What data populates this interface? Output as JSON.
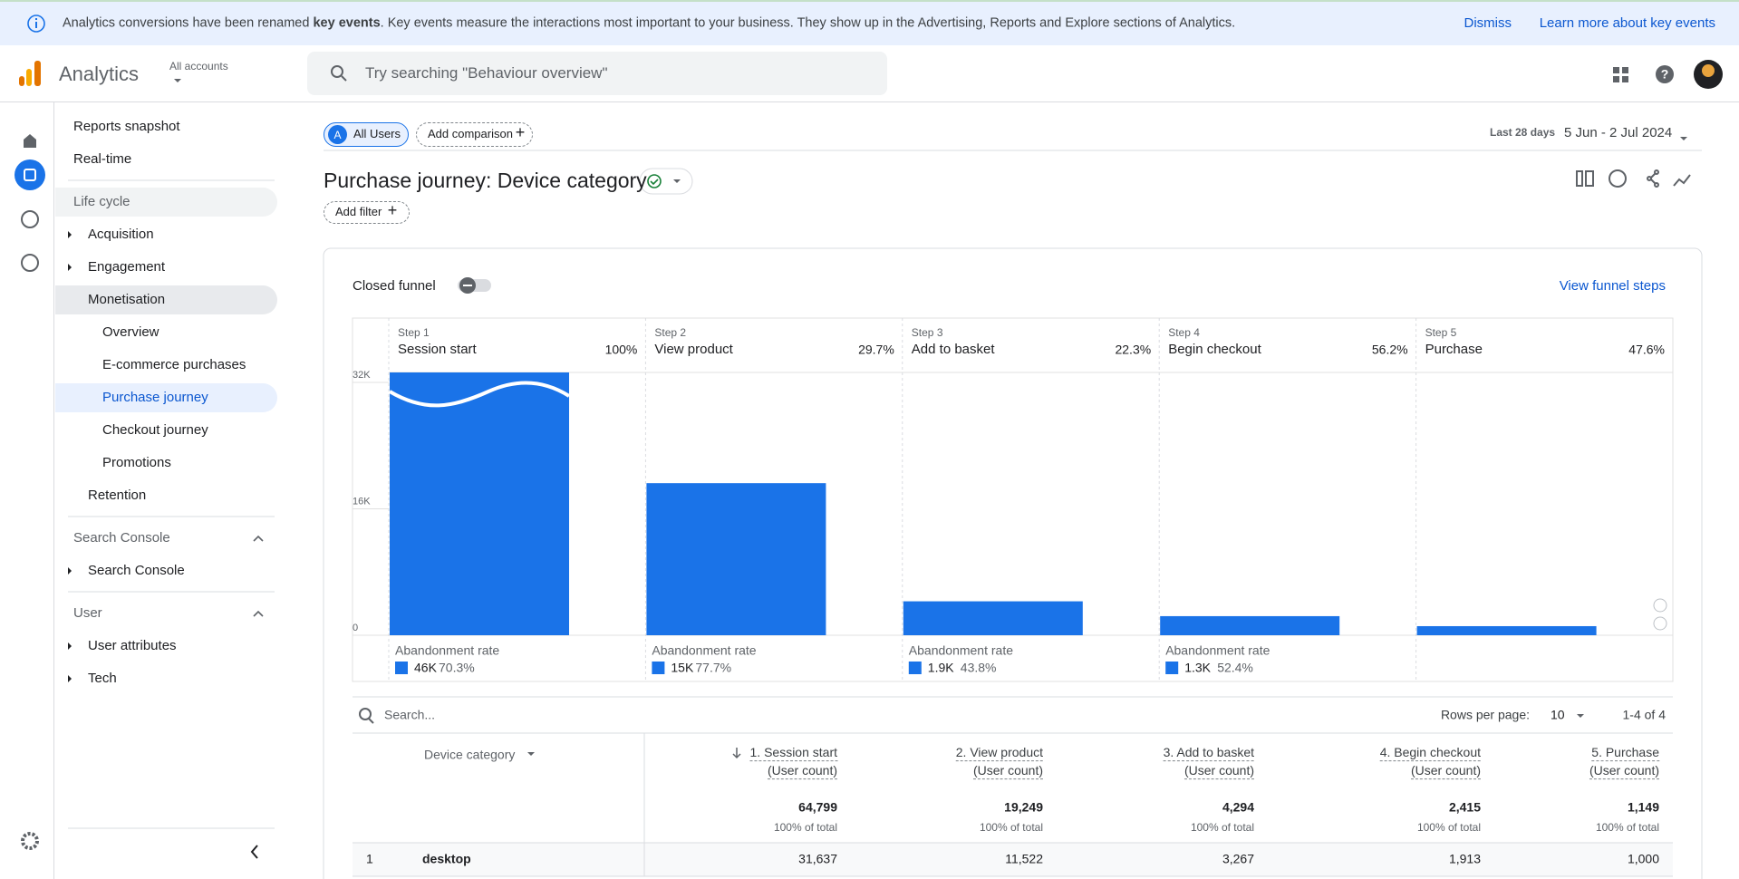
{
  "banner": {
    "message_prefix": "Analytics conversions have been renamed ",
    "message_bold": "key events",
    "message_suffix": ". Key events measure the interactions most important to your business. They show up in the Advertising, Reports and Explore sections of Analytics.",
    "dismiss": "Dismiss",
    "learn_more": "Learn more about key events"
  },
  "header": {
    "product": "Analytics",
    "account_label": "All accounts",
    "search_placeholder": "Try searching \"Behaviour overview\""
  },
  "nav": {
    "top": [
      "Reports snapshot",
      "Real-time"
    ],
    "sections": [
      {
        "title": "Life cycle",
        "items": [
          {
            "label": "Acquisition"
          },
          {
            "label": "Engagement"
          },
          {
            "label": "Monetisation",
            "children": [
              "Overview",
              "E-commerce purchases",
              "Purchase journey",
              "Checkout journey",
              "Promotions"
            ]
          },
          {
            "label": "Retention"
          }
        ]
      },
      {
        "title": "Search Console",
        "items": [
          {
            "label": "Search Console"
          }
        ]
      },
      {
        "title": "User",
        "items": [
          {
            "label": "User attributes"
          },
          {
            "label": "Tech"
          }
        ]
      }
    ]
  },
  "toolbar": {
    "segment_initial": "A",
    "segment": "All Users",
    "add_comparison": "Add comparison",
    "date_label": "Last 28 days",
    "date_range": "5 Jun - 2 Jul 2024",
    "report_title": "Purchase journey: Device category",
    "add_filter": "Add filter"
  },
  "card": {
    "closed_funnel": "Closed funnel",
    "view_steps": "View funnel steps"
  },
  "chart_data": {
    "type": "funnel",
    "color": "#1a73e8",
    "steps": [
      {
        "label": "Step 1",
        "name": "Session start",
        "rate": "100%"
      },
      {
        "label": "Step 2",
        "name": "View product",
        "rate": "29.7%"
      },
      {
        "label": "Step 3",
        "name": "Add to basket",
        "rate": "22.3%"
      },
      {
        "label": "Step 4",
        "name": "Begin checkout",
        "rate": "56.2%"
      },
      {
        "label": "Step 5",
        "name": "Purchase",
        "rate": "47.6%"
      }
    ],
    "values": [
      64799,
      19249,
      4294,
      2415,
      1149
    ],
    "ylim": [
      0,
      32000
    ],
    "yticks": [
      0,
      {
        "value": 16000,
        "label": "16K"
      },
      {
        "value": 32000,
        "label": "32K"
      }
    ],
    "abandonment_label": "Abandonment rate",
    "abandonment": {
      "values": [
        45550,
        14955,
        1879,
        1266
      ],
      "value_labels": [
        "46K",
        "15K",
        "1.9K",
        "1.3K"
      ],
      "rates": [
        "70.3%",
        "77.7%",
        "43.8%",
        "52.4%"
      ]
    }
  },
  "table": {
    "search_placeholder": "Search...",
    "rows_per_page_label": "Rows per page:",
    "rows_per_page": "10",
    "range": "1-4 of 4",
    "dimension_header": "Device category",
    "columns": [
      {
        "title": "1. Session start",
        "subtitle": "(User count)",
        "total": "64,799",
        "total_note": "100% of total"
      },
      {
        "title": "2. View product",
        "subtitle": "(User count)",
        "total": "19,249",
        "total_note": "100% of total"
      },
      {
        "title": "3. Add to basket",
        "subtitle": "(User count)",
        "total": "4,294",
        "total_note": "100% of total"
      },
      {
        "title": "4. Begin checkout",
        "subtitle": "(User count)",
        "total": "2,415",
        "total_note": "100% of total"
      },
      {
        "title": "5. Purchase",
        "subtitle": "(User count)",
        "total": "1,149",
        "total_note": "100% of total"
      }
    ],
    "rows": [
      {
        "index": "1",
        "name": "desktop",
        "values": [
          "31,637",
          "11,522",
          "3,267",
          "1,913",
          "1,000"
        ]
      }
    ]
  }
}
